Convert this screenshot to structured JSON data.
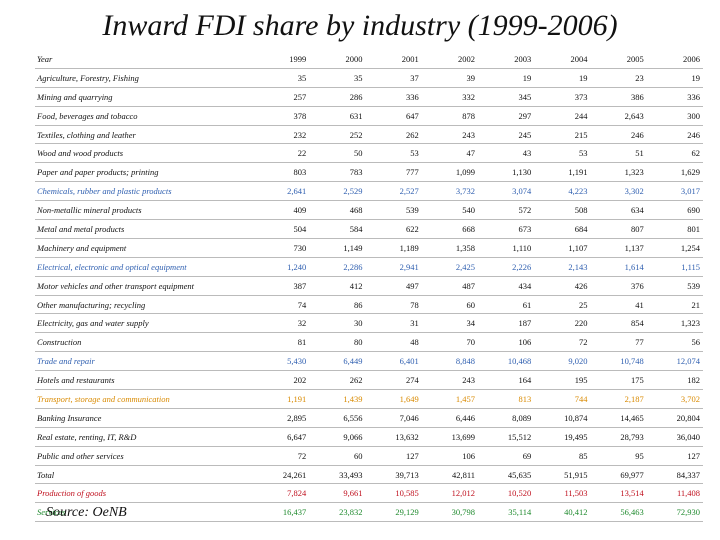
{
  "title": "Inward FDI share by industry (1999-2006)",
  "source": "Source: OeNB",
  "colors": {
    "black": "#111111",
    "blue": "#2f5fb0",
    "red": "#c0111f",
    "green": "#1f8a2e",
    "orange": "#d98a00"
  },
  "table": {
    "header": {
      "label": "Year",
      "years": [
        "1999",
        "2000",
        "2001",
        "2002",
        "2003",
        "2004",
        "2005",
        "2006"
      ]
    },
    "rows": [
      {
        "label": "Agriculture, Forestry, Fishing",
        "color": "black",
        "values": [
          "35",
          "35",
          "37",
          "39",
          "19",
          "19",
          "23",
          "19"
        ]
      },
      {
        "label": "Mining and quarrying",
        "color": "black",
        "values": [
          "257",
          "286",
          "336",
          "332",
          "345",
          "373",
          "386",
          "336"
        ]
      },
      {
        "label": "Food, beverages and tobacco",
        "color": "black",
        "values": [
          "378",
          "631",
          "647",
          "878",
          "297",
          "244",
          "2,643",
          "300"
        ]
      },
      {
        "label": "Textiles, clothing and leather",
        "color": "black",
        "values": [
          "232",
          "252",
          "262",
          "243",
          "245",
          "215",
          "246",
          "246"
        ]
      },
      {
        "label": "Wood and wood products",
        "color": "black",
        "values": [
          "22",
          "50",
          "53",
          "47",
          "43",
          "53",
          "51",
          "62"
        ]
      },
      {
        "label": "Paper and paper products; printing",
        "color": "black",
        "values": [
          "803",
          "783",
          "777",
          "1,099",
          "1,130",
          "1,191",
          "1,323",
          "1,629"
        ]
      },
      {
        "label": "Chemicals, rubber and plastic products",
        "color": "blue",
        "values": [
          "2,641",
          "2,529",
          "2,527",
          "3,732",
          "3,074",
          "4,223",
          "3,302",
          "3,017"
        ]
      },
      {
        "label": "Non-metallic mineral products",
        "color": "black",
        "values": [
          "409",
          "468",
          "539",
          "540",
          "572",
          "508",
          "634",
          "690"
        ]
      },
      {
        "label": "Metal and metal products",
        "color": "black",
        "values": [
          "504",
          "584",
          "622",
          "668",
          "673",
          "684",
          "807",
          "801"
        ]
      },
      {
        "label": "Machinery and equipment",
        "color": "black",
        "values": [
          "730",
          "1,149",
          "1,189",
          "1,358",
          "1,110",
          "1,107",
          "1,137",
          "1,254"
        ]
      },
      {
        "label": "Electrical, electronic and optical equipment",
        "color": "blue",
        "values": [
          "1,240",
          "2,286",
          "2,941",
          "2,425",
          "2,226",
          "2,143",
          "1,614",
          "1,115"
        ]
      },
      {
        "label": "Motor vehicles and other transport equipment",
        "color": "black",
        "values": [
          "387",
          "412",
          "497",
          "487",
          "434",
          "426",
          "376",
          "539"
        ]
      },
      {
        "label": "Other manufacturing; recycling",
        "color": "black",
        "values": [
          "74",
          "86",
          "78",
          "60",
          "61",
          "25",
          "41",
          "21"
        ]
      },
      {
        "label": "Electricity, gas and water supply",
        "color": "black",
        "values": [
          "32",
          "30",
          "31",
          "34",
          "187",
          "220",
          "854",
          "1,323"
        ]
      },
      {
        "label": "Construction",
        "color": "black",
        "values": [
          "81",
          "80",
          "48",
          "70",
          "106",
          "72",
          "77",
          "56"
        ]
      },
      {
        "label": "Trade and repair",
        "color": "blue",
        "values": [
          "5,430",
          "6,449",
          "6,401",
          "8,848",
          "10,468",
          "9,020",
          "10,748",
          "12,074"
        ]
      },
      {
        "label": "Hotels and restaurants",
        "color": "black",
        "values": [
          "202",
          "262",
          "274",
          "243",
          "164",
          "195",
          "175",
          "182"
        ]
      },
      {
        "label": "Transport, storage and communication",
        "color": "orange",
        "values": [
          "1,191",
          "1,439",
          "1,649",
          "1,457",
          "813",
          "744",
          "2,187",
          "3,702"
        ]
      },
      {
        "label": "Banking Insurance",
        "color": "black",
        "values": [
          "2,895",
          "6,556",
          "7,046",
          "6,446",
          "8,089",
          "10,874",
          "14,465",
          "20,804"
        ]
      },
      {
        "label": "Real estate, renting, IT, R&D",
        "color": "black",
        "values": [
          "6,647",
          "9,066",
          "13,632",
          "13,699",
          "15,512",
          "19,495",
          "28,793",
          "36,040"
        ]
      },
      {
        "label": "Public and other services",
        "color": "black",
        "values": [
          "72",
          "60",
          "127",
          "106",
          "69",
          "85",
          "95",
          "127"
        ]
      },
      {
        "label": "Total",
        "color": "black",
        "values": [
          "24,261",
          "33,493",
          "39,713",
          "42,811",
          "45,635",
          "51,915",
          "69,977",
          "84,337"
        ]
      },
      {
        "label": "Production of goods",
        "color": "red",
        "values": [
          "7,824",
          "9,661",
          "10,585",
          "12,012",
          "10,520",
          "11,503",
          "13,514",
          "11,408"
        ]
      },
      {
        "label": "Services",
        "color": "green",
        "values": [
          "16,437",
          "23,832",
          "29,129",
          "30,798",
          "35,114",
          "40,412",
          "56,463",
          "72,930"
        ]
      }
    ]
  }
}
